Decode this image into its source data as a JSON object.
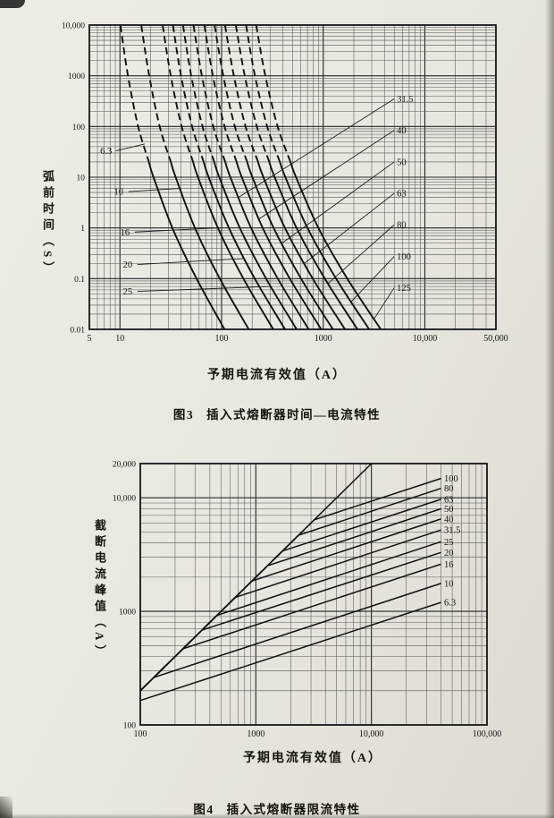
{
  "figures": [
    {
      "fig_no": "图3",
      "title": "插入式熔断器时间—电流特性",
      "xlabel": "予期电流有效值（A）",
      "ylabel": "弧前时间（S）"
    },
    {
      "fig_no": "图4",
      "title": "插入式熔断器限流特性",
      "xlabel": "予期电流有效值（A）",
      "ylabel": "截断电流峰值（A）"
    }
  ],
  "colors": {
    "ink": "#141414",
    "grid_minor": "#575757",
    "grid_major": "#262626",
    "paper": "#e9e6df"
  },
  "chart_data": [
    {
      "type": "line",
      "title": "图3 插入式熔断器时间—电流特性",
      "xlabel": "予期电流有效值（A）",
      "ylabel": "弧前时间（S）",
      "xscale": "log",
      "yscale": "log",
      "grid": true,
      "legend": "inline-labels",
      "xlim": [
        5,
        50000
      ],
      "ylim": [
        0.01,
        10000
      ],
      "x_ticks": [
        {
          "v": 5,
          "label": "5"
        },
        {
          "v": 10,
          "label": "10"
        },
        {
          "v": 100,
          "label": "100"
        },
        {
          "v": 1000,
          "label": "1000"
        },
        {
          "v": 10000,
          "label": "10,000"
        },
        {
          "v": 50000,
          "label": "50,000"
        }
      ],
      "y_ticks": [
        {
          "v": 10000,
          "label": "10,000"
        },
        {
          "v": 1000,
          "label": "1000"
        },
        {
          "v": 100,
          "label": "100"
        },
        {
          "v": 10,
          "label": "10"
        },
        {
          "v": 1,
          "label": "1"
        },
        {
          "v": 0.1,
          "label": "0.1"
        },
        {
          "v": 0.01,
          "label": "0.01"
        }
      ],
      "times_s": [
        10000,
        1000,
        100,
        10,
        1,
        0.1,
        0.01
      ],
      "dash_above_t": 20,
      "series": [
        {
          "name": "6.3",
          "currents_a": [
            10.1,
            12,
            15.1,
            21.4,
            32.8,
            56.7,
            107
          ]
        },
        {
          "name": "10",
          "currents_a": [
            16.2,
            19.4,
            24.6,
            35.3,
            54.7,
            96,
            185
          ]
        },
        {
          "name": "16",
          "currents_a": [
            26.3,
            31.6,
            40.5,
            58.6,
            92,
            164,
            323
          ]
        },
        {
          "name": "20",
          "currents_a": [
            33.2,
            39.9,
            51.3,
            74.6,
            118,
            212,
            421
          ]
        },
        {
          "name": "25",
          "currents_a": [
            41.7,
            50.3,
            64.9,
            94.9,
            151,
            274,
            548
          ]
        },
        {
          "name": "31.5",
          "currents_a": [
            52.9,
            64,
            82.8,
            122,
            195,
            357,
            720
          ]
        },
        {
          "name": "40",
          "currents_a": [
            67.7,
            82.1,
            107,
            158,
            254,
            469,
            956
          ]
        },
        {
          "name": "50",
          "currents_a": [
            85.2,
            104,
            135,
            201,
            325,
            605,
            1245
          ]
        },
        {
          "name": "63",
          "currents_a": [
            108,
            132,
            172,
            258,
            420,
            789,
            1638
          ]
        },
        {
          "name": "80",
          "currents_a": [
            138,
            169,
            222,
            333,
            547,
            1036,
            2173
          ]
        },
        {
          "name": "100",
          "currents_a": [
            174,
            213,
            281,
            424,
            700,
            1337,
            2831
          ]
        },
        {
          "name": "125",
          "currents_a": [
            219,
            269,
            356,
            540,
            896,
            1724,
            3686
          ]
        }
      ],
      "annotations": [
        {
          "text": "6.3",
          "side": "left",
          "label": [
            7.3,
            33
          ],
          "anchor": [
            17.5,
            45
          ]
        },
        {
          "text": "10",
          "side": "left",
          "label": [
            9.7,
            5.2
          ],
          "anchor": [
            38.9,
            6
          ]
        },
        {
          "text": "16",
          "side": "left",
          "label": [
            11.2,
            0.83
          ],
          "anchor": [
            92,
            1
          ]
        },
        {
          "text": "20",
          "side": "left",
          "label": [
            11.9,
            0.19
          ],
          "anchor": [
            168,
            0.25
          ]
        },
        {
          "text": "25",
          "side": "left",
          "label": [
            11.9,
            0.056
          ],
          "anchor": [
            305,
            0.07
          ]
        },
        {
          "text": "31.5",
          "side": "right",
          "label": [
            5300,
            350
          ],
          "anchor": [
            147,
            4
          ]
        },
        {
          "text": "40",
          "side": "right",
          "label": [
            5300,
            84
          ],
          "anchor": [
            233,
            1.5
          ]
        },
        {
          "text": "50",
          "side": "right",
          "label": [
            5300,
            20
          ],
          "anchor": [
            392,
            0.5
          ]
        },
        {
          "text": "63",
          "side": "right",
          "label": [
            5300,
            4.8
          ],
          "anchor": [
            652,
            0.2
          ]
        },
        {
          "text": "80",
          "side": "right",
          "label": [
            5300,
            1.15
          ],
          "anchor": [
            1113,
            0.08
          ]
        },
        {
          "text": "100",
          "side": "right",
          "label": [
            5300,
            0.274
          ],
          "anchor": [
            1882,
            0.035
          ]
        },
        {
          "text": "125",
          "side": "right",
          "label": [
            5300,
            0.066
          ],
          "anchor": [
            3158,
            0.016
          ]
        }
      ]
    },
    {
      "type": "line",
      "title": "图4 插入式熔断器限流特性",
      "xlabel": "予期电流有效值（A）",
      "ylabel": "截断电流峰值（A）",
      "xscale": "log",
      "yscale": "log",
      "grid": true,
      "legend": "inline-labels",
      "xlim": [
        100,
        100000
      ],
      "ylim": [
        100,
        20000
      ],
      "x_ticks": [
        {
          "v": 100,
          "label": "100"
        },
        {
          "v": 1000,
          "label": "1000"
        },
        {
          "v": 10000,
          "label": "10,000"
        },
        {
          "v": 100000,
          "label": "100,000"
        }
      ],
      "y_ticks": [
        {
          "v": 20000,
          "label": "20,000"
        },
        {
          "v": 10000,
          "label": "10,000"
        },
        {
          "v": 1000,
          "label": "1000"
        },
        {
          "v": 100,
          "label": "100"
        }
      ],
      "series": [
        {
          "name": "100",
          "points": [
            [
              100,
              200
            ],
            [
              3200,
              6400
            ],
            [
              40000,
              14800
            ]
          ],
          "label_at": [
            42500,
            14800
          ]
        },
        {
          "name": "80",
          "points": [
            [
              100,
              200
            ],
            [
              2340,
              4680
            ],
            [
              40000,
              12100
            ]
          ],
          "label_at": [
            42500,
            12100
          ]
        },
        {
          "name": "63",
          "points": [
            [
              100,
              200
            ],
            [
              1700,
              3400
            ],
            [
              40000,
              9700
            ]
          ],
          "label_at": [
            42500,
            9700
          ]
        },
        {
          "name": "50",
          "points": [
            [
              100,
              200
            ],
            [
              1260,
              2520
            ],
            [
              40000,
              8000
            ]
          ],
          "label_at": [
            42500,
            8000
          ]
        },
        {
          "name": "40",
          "points": [
            [
              100,
              200
            ],
            [
              926,
              1852
            ],
            [
              40000,
              6500
            ]
          ],
          "label_at": [
            42500,
            6500
          ]
        },
        {
          "name": "31.5",
          "points": [
            [
              100,
              200
            ],
            [
              663,
              1326
            ],
            [
              40000,
              5200
            ]
          ],
          "label_at": [
            42500,
            5200
          ]
        },
        {
          "name": "25",
          "points": [
            [
              100,
              200
            ],
            [
              461,
              922
            ],
            [
              40000,
              4100
            ]
          ],
          "label_at": [
            42500,
            4100
          ]
        },
        {
          "name": "20",
          "points": [
            [
              100,
              200
            ],
            [
              342,
              684
            ],
            [
              40000,
              3300
            ]
          ],
          "label_at": [
            42500,
            3300
          ]
        },
        {
          "name": "16",
          "points": [
            [
              100,
              200
            ],
            [
              234,
              468
            ],
            [
              40000,
              2600
            ]
          ],
          "label_at": [
            42500,
            2600
          ]
        },
        {
          "name": "10",
          "points": [
            [
              100,
              200
            ],
            [
              131,
              262
            ],
            [
              40000,
              1760
            ]
          ],
          "label_at": [
            42500,
            1760
          ]
        },
        {
          "name": "6.3",
          "points": [
            [
              100,
              164
            ],
            [
              40000,
              1200
            ]
          ],
          "label_at": [
            42500,
            1200
          ]
        },
        {
          "name": "",
          "points": [
            [
              100,
              200
            ],
            [
              10000,
              20000
            ]
          ]
        }
      ]
    }
  ]
}
